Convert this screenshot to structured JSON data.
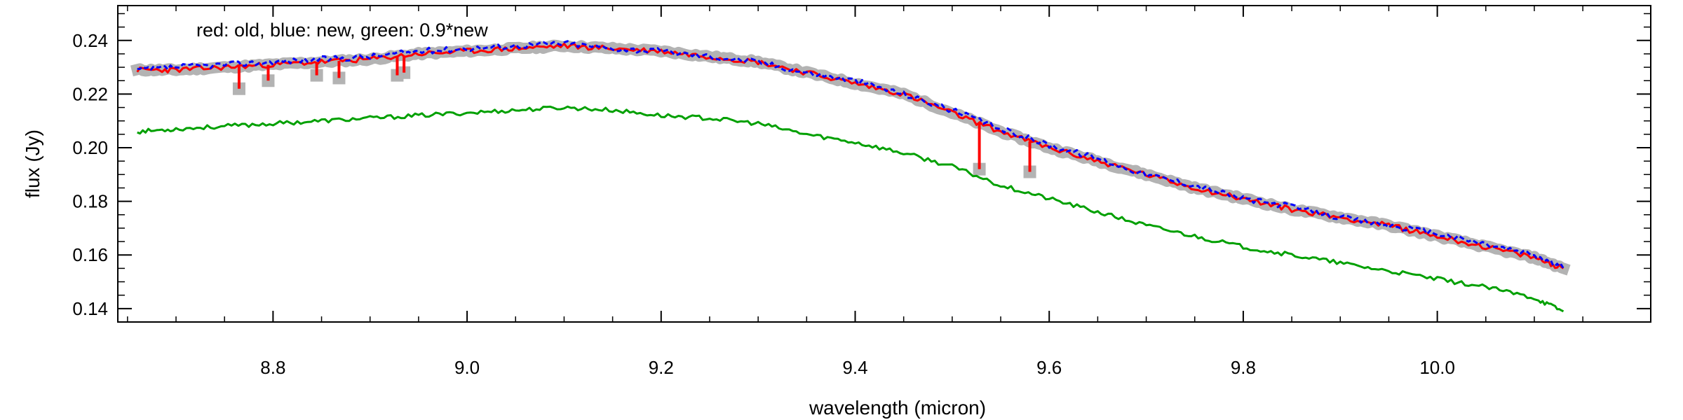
{
  "chart_data": {
    "type": "line",
    "annotation": "red: old, blue: new, green: 0.9*new",
    "xlabel": "wavelength (micron)",
    "ylabel": "flux (Jy)",
    "xlim": [
      8.64,
      10.22
    ],
    "ylim": [
      0.135,
      0.253
    ],
    "xticks": [
      8.8,
      9.0,
      9.2,
      9.4,
      9.6,
      9.8,
      10.0
    ],
    "xtick_labels": [
      "8.8",
      "9.0",
      "9.2",
      "9.4",
      "9.6",
      "9.8",
      "10.0"
    ],
    "yticks": [
      0.14,
      0.16,
      0.18,
      0.2,
      0.22,
      0.24
    ],
    "ytick_labels": [
      "0.14",
      "0.16",
      "0.18",
      "0.20",
      "0.22",
      "0.24"
    ],
    "grid": false,
    "series": [
      {
        "color": "#b3b3b3",
        "x": [
          8.66,
          8.7,
          8.75,
          8.8,
          8.85,
          8.9,
          8.95,
          9.0,
          9.05,
          9.1,
          9.15,
          9.2,
          9.25,
          9.3,
          9.35,
          9.4,
          9.45,
          9.5,
          9.55,
          9.6,
          9.65,
          9.7,
          9.75,
          9.8,
          9.85,
          9.9,
          9.95,
          10.0,
          10.05,
          10.1,
          10.13
        ],
        "values": [
          0.229,
          0.229,
          0.23,
          0.231,
          0.232,
          0.233,
          0.235,
          0.236,
          0.237,
          0.238,
          0.237,
          0.236,
          0.234,
          0.232,
          0.228,
          0.224,
          0.22,
          0.213,
          0.206,
          0.2,
          0.195,
          0.19,
          0.185,
          0.181,
          0.177,
          0.174,
          0.171,
          0.167,
          0.163,
          0.159,
          0.155
        ]
      },
      {
        "color": "#ff0000",
        "x": [
          8.66,
          8.7,
          8.75,
          8.8,
          8.85,
          8.9,
          8.95,
          9.0,
          9.05,
          9.1,
          9.15,
          9.2,
          9.25,
          9.3,
          9.35,
          9.4,
          9.45,
          9.5,
          9.55,
          9.6,
          9.65,
          9.7,
          9.75,
          9.8,
          9.85,
          9.9,
          9.95,
          10.0,
          10.05,
          10.1,
          10.13
        ],
        "values": [
          0.229,
          0.229,
          0.23,
          0.231,
          0.232,
          0.233,
          0.235,
          0.236,
          0.237,
          0.238,
          0.237,
          0.236,
          0.234,
          0.232,
          0.228,
          0.224,
          0.22,
          0.213,
          0.206,
          0.2,
          0.195,
          0.19,
          0.185,
          0.181,
          0.177,
          0.174,
          0.171,
          0.167,
          0.163,
          0.159,
          0.155
        ],
        "dips": [
          [
            8.765,
            0.222
          ],
          [
            8.795,
            0.225
          ],
          [
            8.845,
            0.227
          ],
          [
            8.868,
            0.226
          ],
          [
            8.928,
            0.227
          ],
          [
            8.935,
            0.228
          ],
          [
            9.528,
            0.192
          ],
          [
            9.58,
            0.191
          ]
        ]
      },
      {
        "color": "#0000ff",
        "x": [
          8.66,
          8.7,
          8.75,
          8.8,
          8.85,
          8.9,
          8.95,
          9.0,
          9.05,
          9.1,
          9.15,
          9.2,
          9.25,
          9.3,
          9.35,
          9.4,
          9.45,
          9.5,
          9.55,
          9.6,
          9.65,
          9.7,
          9.75,
          9.8,
          9.85,
          9.9,
          9.95,
          10.0,
          10.05,
          10.1,
          10.13
        ],
        "values": [
          0.229,
          0.23,
          0.231,
          0.232,
          0.233,
          0.234,
          0.236,
          0.237,
          0.238,
          0.239,
          0.237,
          0.236,
          0.234,
          0.232,
          0.228,
          0.225,
          0.22,
          0.214,
          0.207,
          0.201,
          0.196,
          0.19,
          0.186,
          0.181,
          0.178,
          0.174,
          0.171,
          0.168,
          0.164,
          0.16,
          0.155
        ]
      },
      {
        "color": "#00a000",
        "x": [
          8.66,
          8.7,
          8.75,
          8.8,
          8.85,
          8.9,
          8.95,
          9.0,
          9.05,
          9.1,
          9.15,
          9.2,
          9.25,
          9.3,
          9.35,
          9.4,
          9.45,
          9.5,
          9.55,
          9.6,
          9.65,
          9.7,
          9.75,
          9.8,
          9.85,
          9.9,
          9.95,
          10.0,
          10.05,
          10.1,
          10.13
        ],
        "values": [
          0.206,
          0.207,
          0.208,
          0.209,
          0.21,
          0.211,
          0.212,
          0.213,
          0.214,
          0.215,
          0.214,
          0.212,
          0.211,
          0.209,
          0.205,
          0.202,
          0.198,
          0.193,
          0.186,
          0.181,
          0.176,
          0.171,
          0.167,
          0.163,
          0.16,
          0.157,
          0.154,
          0.151,
          0.148,
          0.144,
          0.139
        ]
      }
    ]
  }
}
